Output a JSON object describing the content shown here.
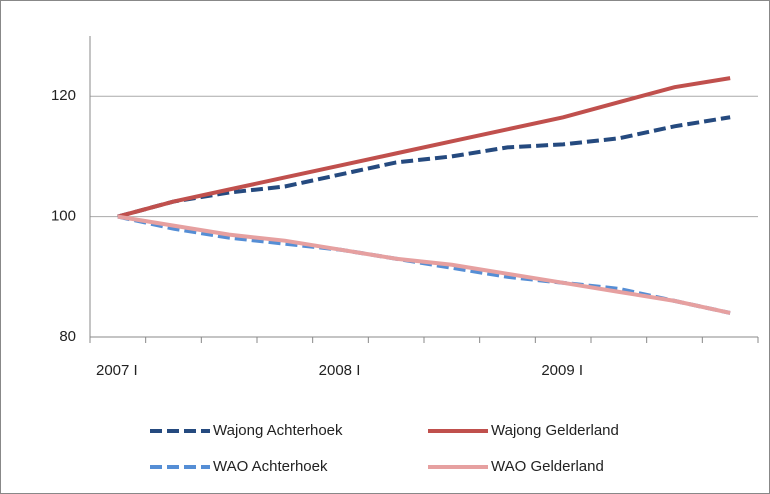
{
  "chart_data": {
    "type": "line",
    "categories": [
      "2007 I",
      null,
      null,
      null,
      "2008 I",
      null,
      null,
      null,
      "2009 I",
      null,
      null,
      null
    ],
    "series": [
      {
        "name": "Wajong Achterhoek",
        "color": "#254a7f",
        "line_style": "dashed",
        "values": [
          100,
          102.5,
          104,
          105,
          107,
          109,
          110,
          111.5,
          112,
          113,
          115,
          116.5
        ]
      },
      {
        "name": "Wajong Gelderland",
        "color": "#c0504d",
        "line_style": "solid",
        "values": [
          100,
          102.5,
          104.5,
          106.5,
          108.5,
          110.5,
          112.5,
          114.5,
          116.5,
          119,
          121.5,
          123
        ]
      },
      {
        "name": "WAO Achterhoek",
        "color": "#558ed5",
        "line_style": "dashed",
        "values": [
          100,
          98,
          96.5,
          95.5,
          94.5,
          93,
          91.5,
          90,
          89,
          88,
          86,
          84
        ]
      },
      {
        "name": "WAO Gelderland",
        "color": "#e6a0a0",
        "line_style": "solid",
        "values": [
          100,
          98.5,
          97,
          96,
          94.5,
          93,
          92,
          90.5,
          89,
          87.5,
          86,
          84
        ]
      }
    ],
    "ylim": [
      80,
      130
    ],
    "yticks": [
      80,
      100,
      120
    ],
    "grid": true,
    "legend": "bottom"
  }
}
